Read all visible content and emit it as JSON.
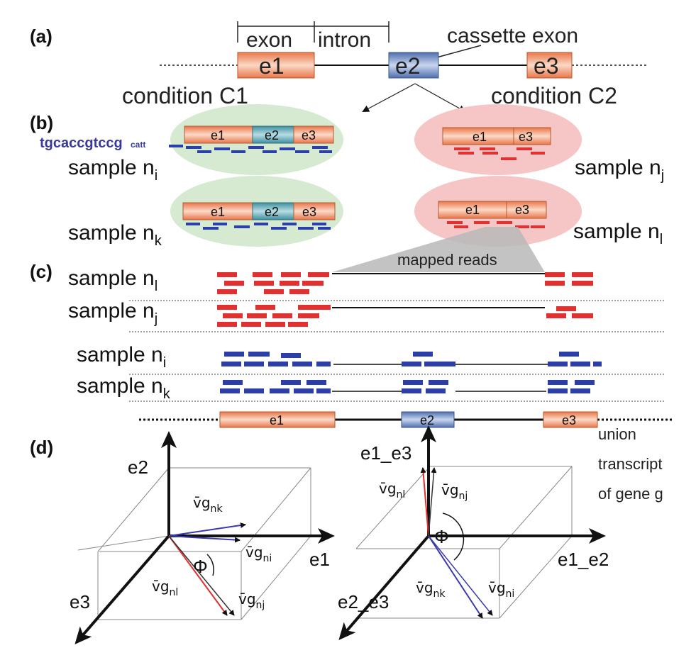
{
  "colors": {
    "exon_orange": "#f08a5d",
    "exon_blue": "#6f8fc6",
    "read_red": "#e03030",
    "read_blue": "#2c3fa8",
    "ellipse_green": "#d5ead0",
    "ellipse_pink": "#f6c6c6"
  },
  "panel_a": {
    "label": "(a)",
    "exon_label": "exon",
    "intron_label": "intron",
    "cassette_label": "cassette exon",
    "e1": "e1",
    "e2": "e2",
    "e3": "e3",
    "condition_c1": "condition C1",
    "condition_c2": "condition C2"
  },
  "panel_b": {
    "label": "(b)",
    "sequence": "tgcaccgtccg",
    "sequence_tail": "catt",
    "sample_ni": {
      "base": "sample n",
      "sub": "i"
    },
    "sample_nj": {
      "base": "sample n",
      "sub": "j"
    },
    "sample_nk": {
      "base": "sample n",
      "sub": "k"
    },
    "sample_nl": {
      "base": "sample n",
      "sub": "l"
    },
    "e1": "e1",
    "e2": "e2",
    "e3": "e3"
  },
  "panel_c": {
    "label": "(c)",
    "mapped_reads": "mapped reads",
    "rows": [
      {
        "base": "sample n",
        "sub": "l"
      },
      {
        "base": "sample n",
        "sub": "j"
      },
      {
        "base": "sample n",
        "sub": "i"
      },
      {
        "base": "sample n",
        "sub": "k"
      }
    ],
    "e1": "e1",
    "e2": "e2",
    "e3": "e3",
    "union_line1": "union",
    "union_line2": "transcript",
    "union_line3": "of gene g"
  },
  "panel_d": {
    "label": "(d)",
    "left": {
      "axis_up": "e2",
      "axis_right": "e1",
      "axis_down": "e3",
      "angle": "Φ",
      "v_nk": "v̄g",
      "v_nk_sub": "nk",
      "v_ni": "v̄g",
      "v_ni_sub": "ni",
      "v_nl": "v̄g",
      "v_nl_sub": "nl",
      "v_nj": "v̄g",
      "v_nj_sub": "nj"
    },
    "right": {
      "axis_up": "e1_e3",
      "axis_right": "e1_e2",
      "axis_down": "e2_e3",
      "angle": "Φ",
      "v_nl": "v̄g",
      "v_nl_sub": "nl",
      "v_nj": "v̄g",
      "v_nj_sub": "nj",
      "v_nk": "v̄g",
      "v_nk_sub": "nk",
      "v_ni": "v̄g",
      "v_ni_sub": "ni"
    }
  }
}
